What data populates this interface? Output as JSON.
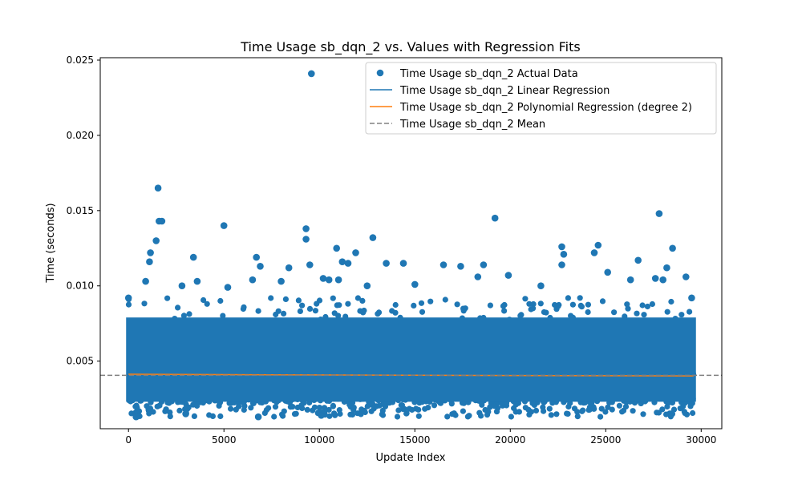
{
  "chart_data": {
    "type": "scatter",
    "title": "Time Usage sb_dqn_2 vs. Values with Regression Fits",
    "xlabel": "Update Index",
    "ylabel": "Time (seconds)",
    "xlim": [
      -1480,
      31080
    ],
    "ylim": [
      0.00051,
      0.02516
    ],
    "xticks": [
      0,
      5000,
      10000,
      15000,
      20000,
      25000,
      30000
    ],
    "yticks": [
      0.005,
      0.01,
      0.015,
      0.02,
      0.025
    ],
    "xtick_labels": [
      "0",
      "5000",
      "10000",
      "15000",
      "20000",
      "25000",
      "30000"
    ],
    "ytick_labels": [
      "0.005",
      "0.010",
      "0.015",
      "0.020",
      "0.025"
    ],
    "grid": false,
    "legend_position": "top-right",
    "n_points": 29600,
    "series": [
      {
        "name": "Time Usage sb_dqn_2 Actual Data",
        "kind": "scatter",
        "color": "#1f77b4",
        "dense_band": {
          "x_range": [
            0,
            29600
          ],
          "y_low": 0.0013,
          "y_high": 0.0082
        },
        "points": [
          [
            9580,
            0.0241
          ],
          [
            1550,
            0.0165
          ],
          [
            1600,
            0.0143
          ],
          [
            1750,
            0.0143
          ],
          [
            5000,
            0.014
          ],
          [
            9300,
            0.0138
          ],
          [
            9300,
            0.0131
          ],
          [
            12800,
            0.0132
          ],
          [
            1450,
            0.013
          ],
          [
            19200,
            0.0145
          ],
          [
            27800,
            0.0148
          ],
          [
            22700,
            0.0126
          ],
          [
            24600,
            0.0127
          ],
          [
            28500,
            0.0125
          ],
          [
            10900,
            0.0125
          ],
          [
            3400,
            0.0119
          ],
          [
            1150,
            0.0122
          ],
          [
            1100,
            0.0116
          ],
          [
            11200,
            0.0116
          ],
          [
            11900,
            0.0122
          ],
          [
            6700,
            0.0119
          ],
          [
            22800,
            0.0121
          ],
          [
            24400,
            0.0122
          ],
          [
            26700,
            0.0117
          ],
          [
            16500,
            0.0114
          ],
          [
            17400,
            0.0113
          ],
          [
            18600,
            0.0114
          ],
          [
            28200,
            0.0112
          ],
          [
            13500,
            0.0115
          ],
          [
            14400,
            0.0115
          ],
          [
            9500,
            0.0114
          ],
          [
            11500,
            0.0115
          ],
          [
            6900,
            0.0113
          ],
          [
            8400,
            0.0112
          ],
          [
            22700,
            0.0114
          ],
          [
            2800,
            0.01
          ],
          [
            3600,
            0.0103
          ],
          [
            6500,
            0.0104
          ],
          [
            10200,
            0.0105
          ],
          [
            10500,
            0.0104
          ],
          [
            11000,
            0.0104
          ],
          [
            12500,
            0.01
          ],
          [
            19900,
            0.0107
          ],
          [
            25100,
            0.0109
          ],
          [
            26300,
            0.0104
          ],
          [
            27600,
            0.0105
          ],
          [
            28000,
            0.0104
          ],
          [
            29200,
            0.0106
          ],
          [
            900,
            0.0103
          ],
          [
            5200,
            0.0099
          ],
          [
            8000,
            0.0103
          ],
          [
            15000,
            0.0101
          ],
          [
            18300,
            0.0106
          ],
          [
            21600,
            0.01
          ],
          [
            0,
            0.0092
          ],
          [
            29500,
            0.0092
          ],
          [
            10100,
            0.0014
          ],
          [
            400,
            0.0013
          ],
          [
            3000,
            0.0015
          ],
          [
            6800,
            0.0013
          ]
        ]
      },
      {
        "name": "Time Usage sb_dqn_2 Linear Regression",
        "kind": "line",
        "color": "#1f77b4",
        "x": [
          0,
          29600
        ],
        "y": [
          0.00412,
          0.00402
        ]
      },
      {
        "name": "Time Usage sb_dqn_2 Polynomial Regression (degree 2)",
        "kind": "line",
        "color": "#ff7f0e",
        "x": [
          0,
          7400,
          14800,
          22200,
          29600
        ],
        "y": [
          0.00413,
          0.00409,
          0.00406,
          0.00404,
          0.00402
        ]
      },
      {
        "name": "Time Usage sb_dqn_2 Mean",
        "kind": "hline",
        "color": "#808080",
        "y": 0.00406
      }
    ]
  }
}
